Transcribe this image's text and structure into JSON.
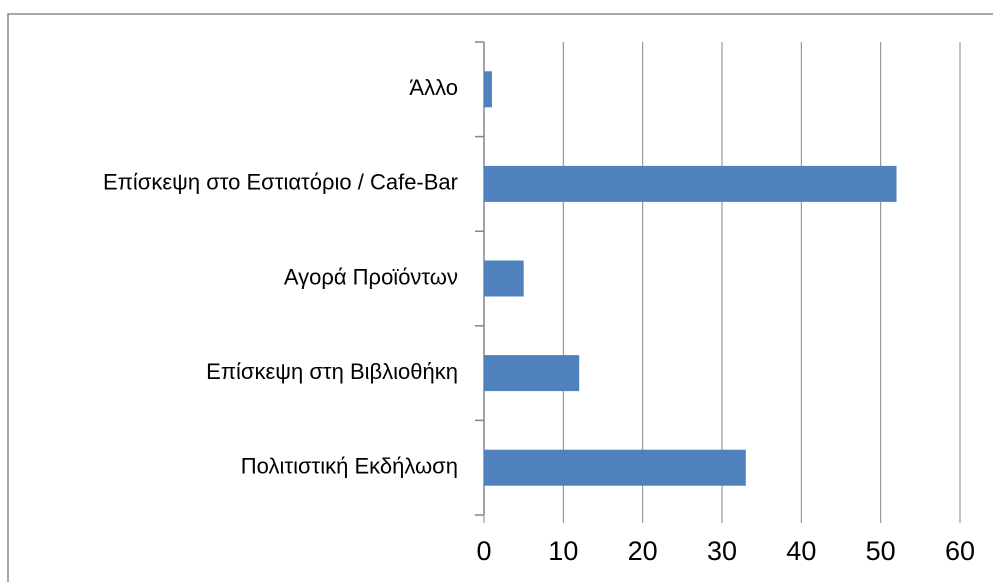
{
  "chart_data": {
    "type": "bar",
    "orientation": "horizontal",
    "categories": [
      "Άλλο",
      "Επίσκεψη στο Εστιατόριο / Cafe-Bar",
      "Αγορά Προϊόντων",
      "Επίσκεψη στη Βιβλιοθήκη",
      "Πολιτιστική Εκδήλωση"
    ],
    "values": [
      1,
      52,
      5,
      12,
      33
    ],
    "color": "#4f81bd",
    "xlim": [
      0,
      60
    ],
    "xticks": [
      0,
      10,
      20,
      30,
      40,
      50,
      60
    ],
    "grid": true
  }
}
